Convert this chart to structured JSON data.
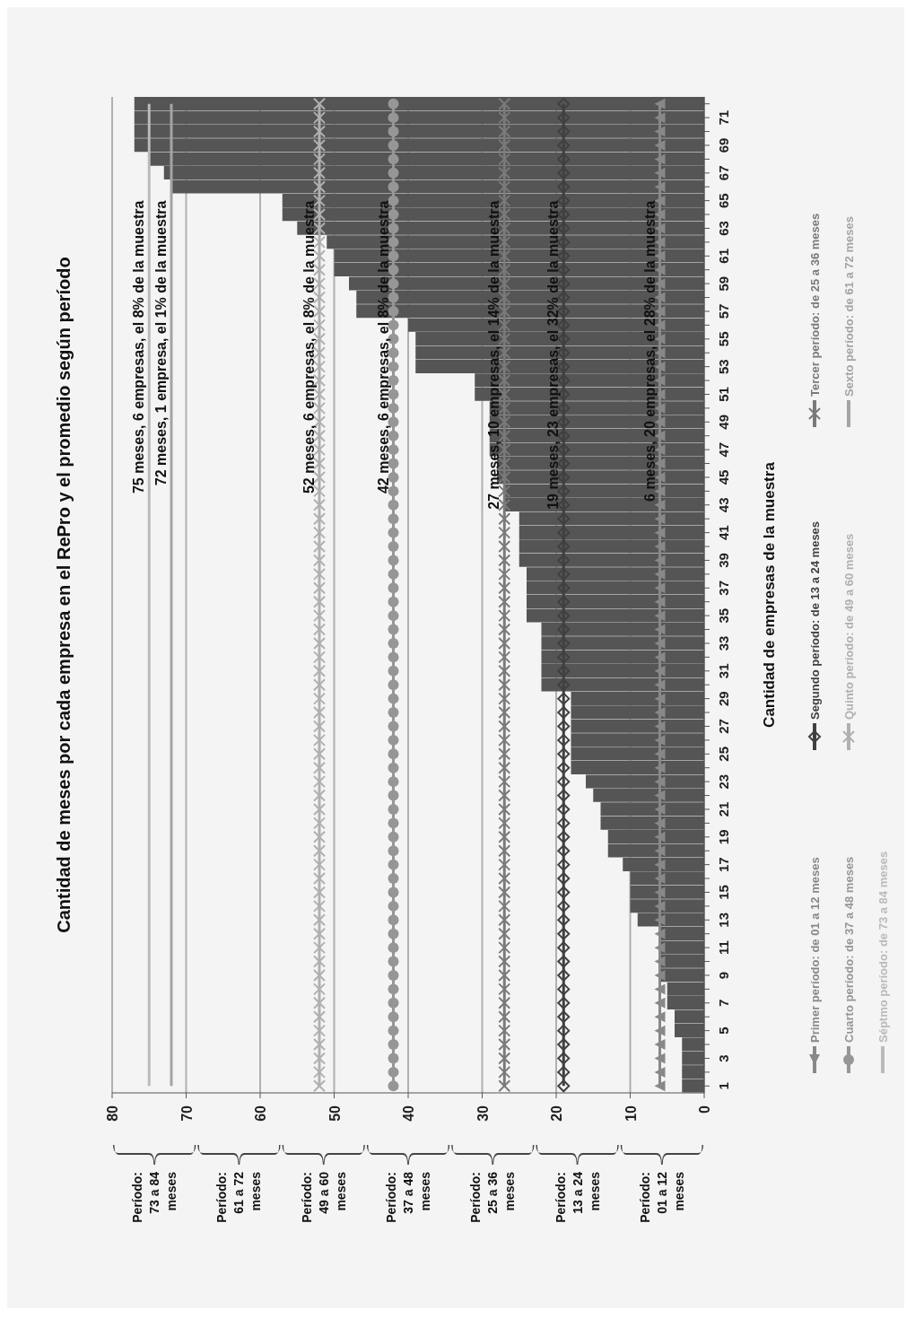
{
  "chart_data": {
    "type": "bar",
    "orientation": "horizontal",
    "title": "Cantidad de meses por cada empresa en el RePro y el promedio según período",
    "ylabel": "Cantidad de empresas  de la muestra",
    "categories": [
      null,
      "71",
      null,
      "69",
      null,
      "67",
      null,
      "65",
      null,
      "63",
      null,
      "61",
      null,
      "59",
      null,
      "57",
      null,
      "55",
      null,
      "53",
      null,
      "51",
      null,
      "49",
      null,
      "47",
      null,
      "45",
      null,
      "43",
      null,
      "41",
      null,
      "39",
      null,
      "37",
      null,
      "35",
      null,
      "33",
      null,
      "31",
      null,
      "29",
      null,
      "27",
      null,
      "25",
      null,
      "23",
      null,
      "21",
      null,
      "19",
      null,
      "17",
      null,
      "15",
      null,
      "13",
      null,
      "11",
      null,
      "9",
      null,
      "7",
      null,
      "5",
      null,
      "3",
      null,
      "1"
    ],
    "series": [
      {
        "color": "#555555",
        "values": [
          77,
          77,
          77,
          77,
          75,
          73,
          72,
          57,
          57,
          55,
          51,
          50,
          50,
          48,
          47,
          47,
          40,
          39,
          39,
          39,
          31,
          31,
          29,
          29,
          29,
          29,
          28,
          28,
          27,
          27,
          25,
          25,
          25,
          25,
          24,
          24,
          24,
          24,
          22,
          22,
          22,
          22,
          22,
          18,
          18,
          18,
          18,
          18,
          18,
          16,
          15,
          14,
          14,
          13,
          13,
          11,
          10,
          10,
          10,
          9,
          6,
          6,
          6,
          6,
          5,
          5,
          4,
          4,
          3,
          3,
          3,
          3
        ]
      },
      {
        "type": "line",
        "name": "Primer período: de 01 a 12 meses",
        "color": "#888888",
        "marker": "triangle",
        "values": [
          6,
          6,
          6,
          6,
          6,
          6,
          6,
          6,
          6,
          6,
          6,
          6,
          6,
          6,
          6,
          6,
          6,
          6,
          6,
          6,
          6,
          6,
          6,
          6,
          6,
          6,
          6,
          6,
          6,
          6,
          6,
          6,
          6,
          6,
          6,
          6,
          6,
          6,
          6,
          6,
          6,
          6,
          6,
          6,
          6,
          6,
          6,
          6,
          6,
          6,
          6,
          6,
          6,
          6,
          6,
          6,
          6,
          6,
          6,
          6,
          6,
          6,
          6,
          6,
          6,
          6,
          6,
          6,
          6,
          6,
          6,
          6
        ]
      },
      {
        "type": "line",
        "name": "Segundo período: de 13 a 24 meses",
        "color": "#404040",
        "marker": "diamond",
        "values": [
          19,
          19,
          19,
          19,
          19,
          19,
          19,
          19,
          19,
          19,
          19,
          19,
          19,
          19,
          19,
          19,
          19,
          19,
          19,
          19,
          19,
          19,
          19,
          19,
          19,
          19,
          19,
          19,
          19,
          19,
          19,
          19,
          19,
          19,
          19,
          19,
          19,
          19,
          19,
          19,
          19,
          19,
          19,
          19,
          19,
          19,
          19,
          19,
          19,
          19,
          19,
          19,
          19,
          19,
          19,
          19,
          19,
          19,
          19,
          19,
          19,
          19,
          19,
          19,
          19,
          19,
          19,
          19,
          19,
          19,
          19,
          19
        ]
      },
      {
        "type": "line",
        "name": "Tercer período: de 25 a 36 meses",
        "color": "#7a7a7a",
        "marker": "cross",
        "values": [
          27,
          27,
          27,
          27,
          27,
          27,
          27,
          27,
          27,
          27,
          27,
          27,
          27,
          27,
          27,
          27,
          27,
          27,
          27,
          27,
          27,
          27,
          27,
          27,
          27,
          27,
          27,
          27,
          27,
          27,
          27,
          27,
          27,
          27,
          27,
          27,
          27,
          27,
          27,
          27,
          27,
          27,
          27,
          27,
          27,
          27,
          27,
          27,
          27,
          27,
          27,
          27,
          27,
          27,
          27,
          27,
          27,
          27,
          27,
          27,
          27,
          27,
          27,
          27,
          27,
          27,
          27,
          27,
          27,
          27,
          27,
          27
        ]
      },
      {
        "type": "line",
        "name": "Cuarto período: de 37 a 48 meses",
        "color": "#969696",
        "marker": "circle",
        "values": [
          42,
          42,
          42,
          42,
          42,
          42,
          42,
          42,
          42,
          42,
          42,
          42,
          42,
          42,
          42,
          42,
          42,
          42,
          42,
          42,
          42,
          42,
          42,
          42,
          42,
          42,
          42,
          42,
          42,
          42,
          42,
          42,
          42,
          42,
          42,
          42,
          42,
          42,
          42,
          42,
          42,
          42,
          42,
          42,
          42,
          42,
          42,
          42,
          42,
          42,
          42,
          42,
          42,
          42,
          42,
          42,
          42,
          42,
          42,
          42,
          42,
          42,
          42,
          42,
          42,
          42,
          42,
          42,
          42,
          42,
          42,
          42
        ]
      },
      {
        "type": "line",
        "name": "Quinto período: de 49 a 60 meses",
        "color": "#b0b0b0",
        "marker": "cross",
        "values": [
          52,
          52,
          52,
          52,
          52,
          52,
          52,
          52,
          52,
          52,
          52,
          52,
          52,
          52,
          52,
          52,
          52,
          52,
          52,
          52,
          52,
          52,
          52,
          52,
          52,
          52,
          52,
          52,
          52,
          52,
          52,
          52,
          52,
          52,
          52,
          52,
          52,
          52,
          52,
          52,
          52,
          52,
          52,
          52,
          52,
          52,
          52,
          52,
          52,
          52,
          52,
          52,
          52,
          52,
          52,
          52,
          52,
          52,
          52,
          52,
          52,
          52,
          52,
          52,
          52,
          52,
          52,
          52,
          52,
          52,
          52,
          52
        ]
      },
      {
        "type": "line",
        "name": "Sexto período: de 61 a 72 meses",
        "color": "#a4a4a4",
        "marker": "none",
        "values": [
          72,
          72,
          72,
          72,
          72,
          72,
          72,
          72,
          72,
          72,
          72,
          72,
          72,
          72,
          72,
          72,
          72,
          72,
          72,
          72,
          72,
          72,
          72,
          72,
          72,
          72,
          72,
          72,
          72,
          72,
          72,
          72,
          72,
          72,
          72,
          72,
          72,
          72,
          72,
          72,
          72,
          72,
          72,
          72,
          72,
          72,
          72,
          72,
          72,
          72,
          72,
          72,
          72,
          72,
          72,
          72,
          72,
          72,
          72,
          72,
          72,
          72,
          72,
          72,
          72,
          72,
          72,
          72,
          72,
          72,
          72,
          72
        ]
      },
      {
        "type": "line",
        "name": "Séptmo período: de 73 a 84 meses",
        "color": "#bababa",
        "marker": "none",
        "values": [
          75,
          75,
          75,
          75,
          75,
          75,
          75,
          75,
          75,
          75,
          75,
          75,
          75,
          75,
          75,
          75,
          75,
          75,
          75,
          75,
          75,
          75,
          75,
          75,
          75,
          75,
          75,
          75,
          75,
          75,
          75,
          75,
          75,
          75,
          75,
          75,
          75,
          75,
          75,
          75,
          75,
          75,
          75,
          75,
          75,
          75,
          75,
          75,
          75,
          75,
          75,
          75,
          75,
          75,
          75,
          75,
          75,
          75,
          75,
          75,
          75,
          75,
          75,
          75,
          75,
          75,
          75,
          75,
          75,
          75,
          75,
          75
        ]
      }
    ],
    "xlim": [
      80,
      0
    ],
    "xticks": [
      80,
      70,
      60,
      50,
      40,
      30,
      20,
      10,
      0
    ],
    "grid": "x",
    "legend": "right",
    "annotations": [
      {
        "text": "75 meses, 6 empresas, el 8% de la muestra",
        "x": 75
      },
      {
        "text": "72 meses, 1 empresa, el 1% de la muestra",
        "x": 72
      },
      {
        "text": "52 meses, 6 empresas, el 8% de la muestra",
        "x": 52
      },
      {
        "text": "42 meses, 6 empresas, el 8% de la muestra",
        "x": 42
      },
      {
        "text": "27 meses, 10 empresas, el 14% de la muestra",
        "x": 27
      },
      {
        "text": "19 meses, 23 empresas, el 32% de la muestra",
        "x": 19
      },
      {
        "text": "6 meses, 20 empresas, el 28% de la muestra",
        "x": 6
      },
      "Período: 73 a 84 meses",
      "Período: 61 a 72 meses",
      "Período: 49 a 60 meses",
      "Período: 37 a 48 meses",
      "Período: 25 a 36 meses",
      "Período: 13 a 24 meses",
      "Período: 01 a 12 meses"
    ]
  }
}
